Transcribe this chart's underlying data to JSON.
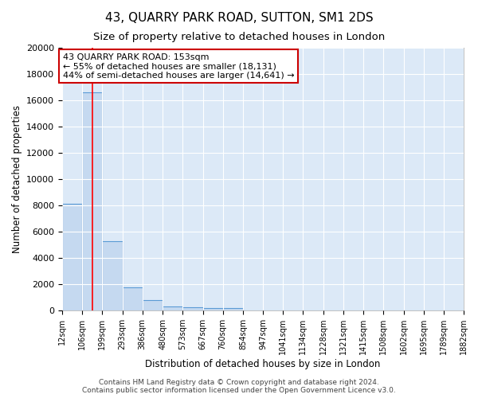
{
  "title": "43, QUARRY PARK ROAD, SUTTON, SM1 2DS",
  "subtitle": "Size of property relative to detached houses in London",
  "xlabel": "Distribution of detached houses by size in London",
  "ylabel": "Number of detached properties",
  "bin_edges": [
    12,
    106,
    199,
    293,
    386,
    480,
    573,
    667,
    760,
    854,
    947,
    1041,
    1134,
    1228,
    1321,
    1415,
    1508,
    1602,
    1695,
    1789,
    1882
  ],
  "bar_heights": [
    8100,
    16600,
    5300,
    1750,
    800,
    300,
    250,
    200,
    200,
    0,
    0,
    0,
    0,
    0,
    0,
    0,
    0,
    0,
    0,
    0
  ],
  "bar_color": "#c5d9f0",
  "bar_edge_color": "#5b9bd5",
  "background_color": "#dce9f7",
  "grid_color": "#ffffff",
  "fig_background": "#ffffff",
  "red_line_x": 153,
  "annotation_text": "43 QUARRY PARK ROAD: 153sqm\n← 55% of detached houses are smaller (18,131)\n44% of semi-detached houses are larger (14,641) →",
  "annotation_box_color": "#ffffff",
  "annotation_border_color": "#cc0000",
  "ylim": [
    0,
    20000
  ],
  "yticks": [
    0,
    2000,
    4000,
    6000,
    8000,
    10000,
    12000,
    14000,
    16000,
    18000,
    20000
  ],
  "footer_text": "Contains HM Land Registry data © Crown copyright and database right 2024.\nContains public sector information licensed under the Open Government Licence v3.0.",
  "title_fontsize": 11,
  "subtitle_fontsize": 9.5,
  "tick_label_fontsize": 7,
  "ylabel_fontsize": 8.5,
  "xlabel_fontsize": 8.5,
  "annotation_fontsize": 8,
  "footer_fontsize": 6.5
}
